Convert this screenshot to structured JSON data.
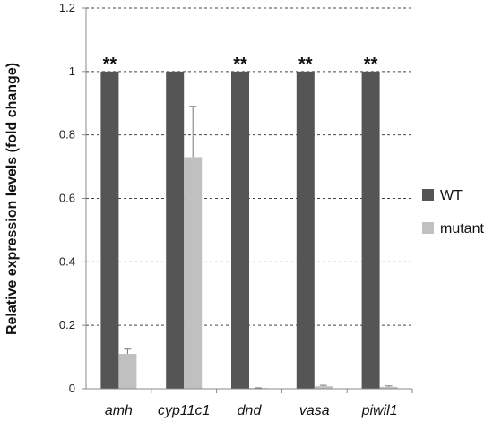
{
  "chart_data": {
    "type": "bar",
    "title": "",
    "xlabel": "",
    "ylabel": "Relative expression levels (fold change)",
    "ylim": [
      0,
      1.2
    ],
    "yticks": [
      0,
      0.2,
      0.4,
      0.6,
      0.8,
      1,
      1.2
    ],
    "ytick_labels": [
      "0",
      "0.2",
      "0.4",
      "0.6",
      "0.8",
      "1",
      "1.2"
    ],
    "grid": "horizontal dashed",
    "legend_position": "right",
    "categories": [
      "amh",
      "cyp11c1",
      "dnd",
      "vasa",
      "piwil1"
    ],
    "series": [
      {
        "name": "WT",
        "color": "#555555",
        "values": [
          1,
          1,
          1,
          1,
          1
        ],
        "errors": [
          0,
          0,
          0,
          0,
          0
        ]
      },
      {
        "name": "mutant",
        "color": "#c0c0c0",
        "values": [
          0.11,
          0.73,
          0.002,
          0.008,
          0.006
        ],
        "errors": [
          0.015,
          0.16,
          0.001,
          0.003,
          0.003
        ]
      }
    ],
    "annotations": [
      "**",
      "",
      "**",
      "**",
      "**"
    ]
  }
}
